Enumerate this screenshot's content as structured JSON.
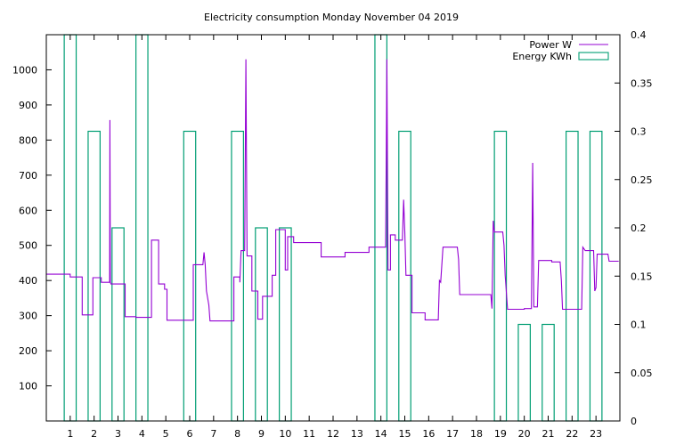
{
  "chart_data": {
    "type": "line",
    "title": "Electricity consumption Monday November 04 2019",
    "xlim": [
      0,
      24
    ],
    "x_ticks": [
      1,
      2,
      3,
      4,
      5,
      6,
      7,
      8,
      9,
      10,
      11,
      12,
      13,
      14,
      15,
      16,
      17,
      18,
      19,
      20,
      21,
      22,
      23
    ],
    "y_left": {
      "range": [
        0,
        1100
      ],
      "ticks": [
        100,
        200,
        300,
        400,
        500,
        600,
        700,
        800,
        900,
        1000
      ]
    },
    "y_right": {
      "range": [
        0,
        0.4
      ],
      "ticks": [
        0,
        0.05,
        0.1,
        0.15,
        0.2,
        0.25,
        0.3,
        0.35,
        0.4
      ]
    },
    "grid": false,
    "legend_position": "top-right",
    "series": [
      {
        "name": "Power W",
        "type": "step-line",
        "axis": "left",
        "color": "#9400d3",
        "points": [
          [
            0,
            418
          ],
          [
            1.0,
            418
          ],
          [
            1.0,
            410
          ],
          [
            1.5,
            410
          ],
          [
            1.5,
            302
          ],
          [
            1.95,
            302
          ],
          [
            1.95,
            408
          ],
          [
            2.3,
            408
          ],
          [
            2.3,
            395
          ],
          [
            2.65,
            395
          ],
          [
            2.66,
            857
          ],
          [
            2.68,
            395
          ],
          [
            2.7,
            390
          ],
          [
            3.3,
            390
          ],
          [
            3.3,
            297
          ],
          [
            3.75,
            297
          ],
          [
            3.75,
            295
          ],
          [
            4.4,
            295
          ],
          [
            4.4,
            515
          ],
          [
            4.7,
            515
          ],
          [
            4.7,
            390
          ],
          [
            4.95,
            390
          ],
          [
            4.95,
            375
          ],
          [
            5.05,
            375
          ],
          [
            5.05,
            287
          ],
          [
            6.15,
            287
          ],
          [
            6.15,
            445
          ],
          [
            6.55,
            445
          ],
          [
            6.6,
            480
          ],
          [
            6.65,
            445
          ],
          [
            6.7,
            370
          ],
          [
            6.8,
            330
          ],
          [
            6.85,
            285
          ],
          [
            7.85,
            285
          ],
          [
            7.85,
            410
          ],
          [
            8.1,
            410
          ],
          [
            8.1,
            395
          ],
          [
            8.15,
            485
          ],
          [
            8.3,
            485
          ],
          [
            8.35,
            1030
          ],
          [
            8.4,
            470
          ],
          [
            8.6,
            470
          ],
          [
            8.6,
            370
          ],
          [
            8.85,
            370
          ],
          [
            8.85,
            290
          ],
          [
            9.05,
            290
          ],
          [
            9.05,
            355
          ],
          [
            9.45,
            355
          ],
          [
            9.45,
            415
          ],
          [
            9.6,
            415
          ],
          [
            9.6,
            545
          ],
          [
            10.0,
            545
          ],
          [
            10.0,
            430
          ],
          [
            10.1,
            430
          ],
          [
            10.1,
            525
          ],
          [
            10.35,
            525
          ],
          [
            10.35,
            508
          ],
          [
            11.5,
            508
          ],
          [
            11.5,
            467
          ],
          [
            12.5,
            467
          ],
          [
            12.5,
            480
          ],
          [
            13.5,
            480
          ],
          [
            13.5,
            495
          ],
          [
            14.2,
            495
          ],
          [
            14.25,
            1030
          ],
          [
            14.3,
            430
          ],
          [
            14.4,
            430
          ],
          [
            14.4,
            530
          ],
          [
            14.6,
            530
          ],
          [
            14.6,
            515
          ],
          [
            14.9,
            515
          ],
          [
            14.95,
            630
          ],
          [
            15.0,
            540
          ],
          [
            15.05,
            415
          ],
          [
            15.3,
            415
          ],
          [
            15.3,
            308
          ],
          [
            15.85,
            308
          ],
          [
            15.85,
            288
          ],
          [
            16.4,
            288
          ],
          [
            16.45,
            400
          ],
          [
            16.5,
            395
          ],
          [
            16.6,
            495
          ],
          [
            17.2,
            495
          ],
          [
            17.25,
            460
          ],
          [
            17.3,
            360
          ],
          [
            18.6,
            360
          ],
          [
            18.65,
            320
          ],
          [
            18.7,
            570
          ],
          [
            18.75,
            538
          ],
          [
            19.1,
            538
          ],
          [
            19.15,
            500
          ],
          [
            19.2,
            415
          ],
          [
            19.3,
            318
          ],
          [
            20.0,
            318
          ],
          [
            20.0,
            320
          ],
          [
            20.3,
            320
          ],
          [
            20.35,
            735
          ],
          [
            20.4,
            325
          ],
          [
            20.55,
            325
          ],
          [
            20.6,
            457
          ],
          [
            21.15,
            457
          ],
          [
            21.15,
            453
          ],
          [
            21.5,
            453
          ],
          [
            21.55,
            400
          ],
          [
            21.6,
            318
          ],
          [
            22.4,
            318
          ],
          [
            22.45,
            495
          ],
          [
            22.55,
            485
          ],
          [
            22.9,
            485
          ],
          [
            22.95,
            370
          ],
          [
            23.0,
            380
          ],
          [
            23.05,
            475
          ],
          [
            23.5,
            475
          ],
          [
            23.55,
            455
          ],
          [
            23.95,
            455
          ]
        ]
      },
      {
        "name": "Energy KWh",
        "type": "bars",
        "axis": "right",
        "color": "#009e73",
        "bars": [
          {
            "x0": 0.75,
            "x1": 1.25,
            "value": 0.4
          },
          {
            "x0": 1.75,
            "x1": 2.25,
            "value": 0.3
          },
          {
            "x0": 2.75,
            "x1": 3.25,
            "value": 0.2
          },
          {
            "x0": 3.75,
            "x1": 4.25,
            "value": 0.4
          },
          {
            "x0": 5.75,
            "x1": 6.25,
            "value": 0.3
          },
          {
            "x0": 7.75,
            "x1": 8.25,
            "value": 0.3
          },
          {
            "x0": 8.75,
            "x1": 9.25,
            "value": 0.2
          },
          {
            "x0": 9.75,
            "x1": 10.25,
            "value": 0.2
          },
          {
            "x0": 13.75,
            "x1": 14.25,
            "value": 0.4
          },
          {
            "x0": 14.75,
            "x1": 15.25,
            "value": 0.3
          },
          {
            "x0": 18.75,
            "x1": 19.25,
            "value": 0.3
          },
          {
            "x0": 19.75,
            "x1": 20.25,
            "value": 0.1
          },
          {
            "x0": 20.75,
            "x1": 21.25,
            "value": 0.1
          },
          {
            "x0": 21.75,
            "x1": 22.25,
            "value": 0.3
          },
          {
            "x0": 22.75,
            "x1": 23.25,
            "value": 0.3
          }
        ]
      }
    ]
  }
}
